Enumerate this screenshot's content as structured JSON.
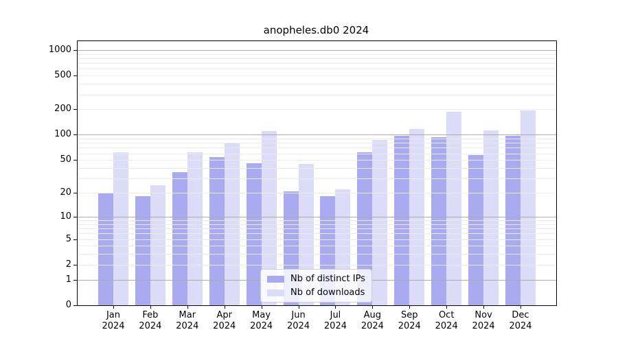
{
  "title": "anopheles.db0 2024",
  "chart_data": {
    "type": "bar",
    "title": "anopheles.db0 2024",
    "categories": [
      "Jan 2024",
      "Feb 2024",
      "Mar 2024",
      "Apr 2024",
      "May 2024",
      "Jun 2024",
      "Jul 2024",
      "Aug 2024",
      "Sep 2024",
      "Oct 2024",
      "Nov 2024",
      "Dec 2024"
    ],
    "series": [
      {
        "name": "Nb of distinct IPs",
        "color": "#aaaaf0",
        "values": [
          20,
          18,
          36,
          54,
          46,
          21,
          18,
          62,
          97,
          93,
          57,
          97
        ]
      },
      {
        "name": "Nb of downloads",
        "color": "#dcdcf9",
        "values": [
          62,
          25,
          62,
          80,
          110,
          45,
          22,
          87,
          117,
          187,
          113,
          194
        ]
      }
    ],
    "xlabel": "",
    "ylabel": "",
    "y_scale": "log10(1+y)",
    "y_ticks": [
      0,
      1,
      2,
      5,
      10,
      20,
      50,
      100,
      200,
      500,
      1000
    ],
    "y_major_gridlines": [
      1,
      10,
      100,
      1000
    ],
    "ylim": [
      0,
      1270
    ],
    "grid": "horizontal major+minor, drawn over bars",
    "legend_position": "lower center inside plot"
  },
  "legend": {
    "items": [
      {
        "label": "Nb of distinct IPs",
        "color": "#aaaaf0"
      },
      {
        "label": "Nb of downloads",
        "color": "#dcdcf9"
      }
    ]
  },
  "colors": {
    "background": "#ffffff",
    "bar_distinct_ips": "#aaaaf0",
    "bar_downloads": "#dcdcf9",
    "grid_major": "#ababab",
    "grid_minor": "#ebebeb",
    "axis": "#000000",
    "text": "#000000",
    "legend_border": "#cfcfcf"
  }
}
